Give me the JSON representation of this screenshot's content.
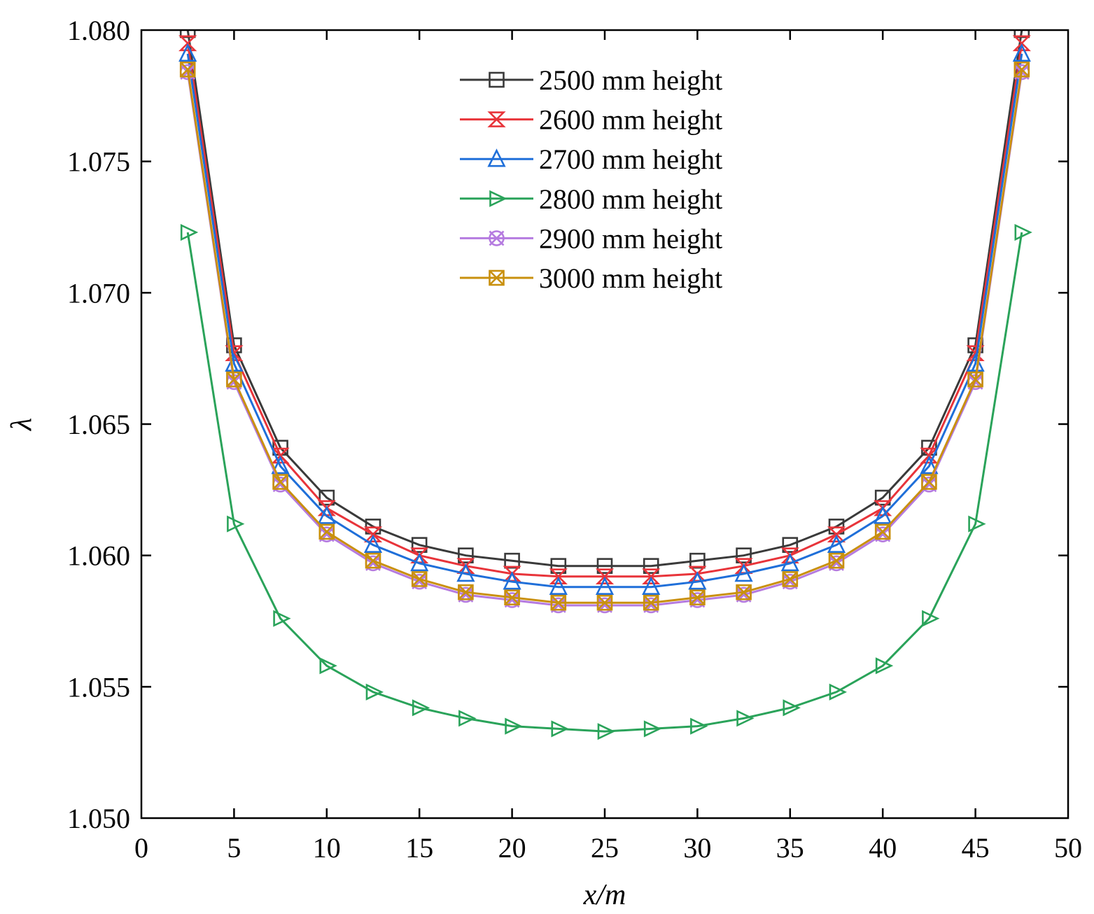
{
  "chart_data": {
    "type": "line",
    "xlabel": "x/m",
    "ylabel": "λ",
    "xlim": [
      0,
      50
    ],
    "ylim": [
      1.05,
      1.08
    ],
    "xticks": [
      "0",
      "5",
      "10",
      "15",
      "20",
      "25",
      "30",
      "35",
      "40",
      "45",
      "50"
    ],
    "yticks": [
      "1.050",
      "1.055",
      "1.060",
      "1.065",
      "1.070",
      "1.075",
      "1.080"
    ],
    "legend_position": "top-center",
    "x": [
      2.5,
      5,
      7.5,
      10,
      12.5,
      15,
      17.5,
      20,
      22.5,
      25,
      27.5,
      30,
      32.5,
      35,
      37.5,
      40,
      42.5,
      45,
      47.5
    ],
    "series": [
      {
        "name": "2500 mm height",
        "color": "#3a3a3a",
        "marker": "square",
        "values": [
          1.08,
          1.068,
          1.0641,
          1.0622,
          1.0611,
          1.0604,
          1.06,
          1.0598,
          1.0596,
          1.0596,
          1.0596,
          1.0598,
          1.06,
          1.0604,
          1.0611,
          1.0622,
          1.0641,
          1.068,
          1.08
        ]
      },
      {
        "name": "2600 mm height",
        "color": "#e8343a",
        "marker": "bowtie",
        "values": [
          1.0795,
          1.0677,
          1.0638,
          1.0618,
          1.0608,
          1.06,
          1.0596,
          1.0593,
          1.0592,
          1.0592,
          1.0592,
          1.0593,
          1.0596,
          1.06,
          1.0608,
          1.0618,
          1.0638,
          1.0677,
          1.0795
        ]
      },
      {
        "name": "2700 mm height",
        "color": "#1f6fd9",
        "marker": "triangle",
        "values": [
          1.0791,
          1.0673,
          1.0634,
          1.0615,
          1.0604,
          1.0597,
          1.0593,
          1.059,
          1.0588,
          1.0588,
          1.0588,
          1.059,
          1.0593,
          1.0597,
          1.0604,
          1.0615,
          1.0634,
          1.0673,
          1.0791
        ]
      },
      {
        "name": "2800 mm height",
        "color": "#2aa35a",
        "marker": "triangle-right",
        "values": [
          1.0723,
          1.0612,
          1.0576,
          1.0558,
          1.0548,
          1.0542,
          1.0538,
          1.0535,
          1.0534,
          1.0533,
          1.0534,
          1.0535,
          1.0538,
          1.0542,
          1.0548,
          1.0558,
          1.0576,
          1.0612,
          1.0723
        ]
      },
      {
        "name": "2900 mm height",
        "color": "#b57be0",
        "marker": "circle-x",
        "values": [
          1.0784,
          1.0666,
          1.0627,
          1.0608,
          1.0597,
          1.059,
          1.0585,
          1.0583,
          1.0581,
          1.0581,
          1.0581,
          1.0583,
          1.0585,
          1.059,
          1.0597,
          1.0608,
          1.0627,
          1.0666,
          1.0784
        ]
      },
      {
        "name": "3000 mm height",
        "color": "#c9900e",
        "marker": "box-x",
        "values": [
          1.0785,
          1.0667,
          1.0628,
          1.0609,
          1.0598,
          1.0591,
          1.0586,
          1.0584,
          1.0582,
          1.0582,
          1.0582,
          1.0584,
          1.0586,
          1.0591,
          1.0598,
          1.0609,
          1.0628,
          1.0667,
          1.0785
        ]
      }
    ]
  }
}
